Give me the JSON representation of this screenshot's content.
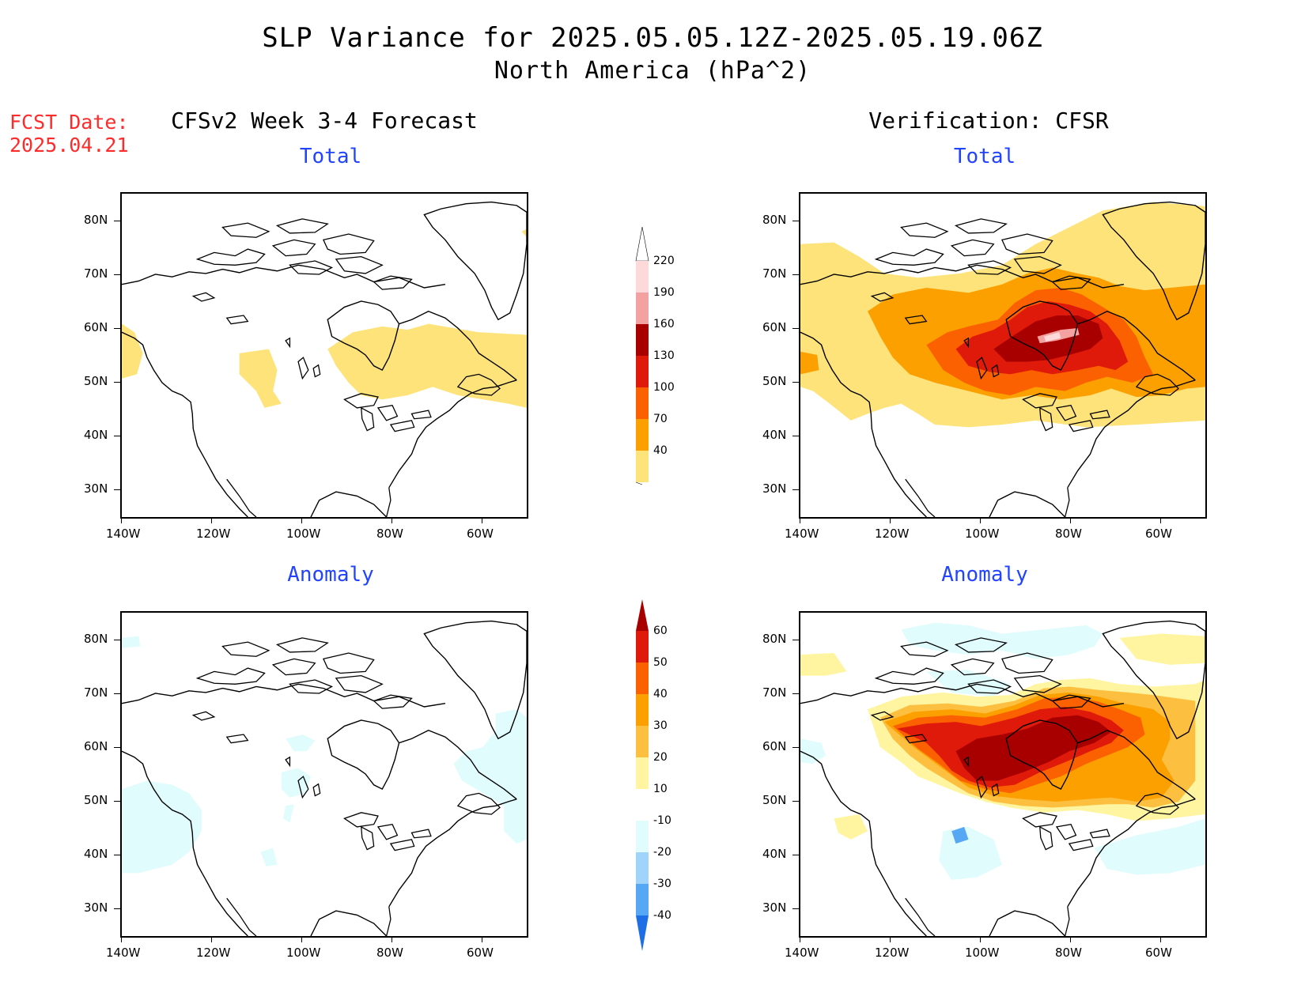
{
  "header": {
    "title": "SLP Variance for 2025.05.05.12Z-2025.05.19.06Z",
    "subtitle": "North America (hPa^2)",
    "fcst_date_line1": "FCST Date:",
    "fcst_date_line2": "2025.04.21"
  },
  "columns": {
    "left": "CFSv2 Week 3-4 Forecast",
    "right": "Verification: CFSR"
  },
  "panels": {
    "forecast_total": "Total",
    "forecast_anomaly": "Anomaly",
    "verif_total": "Total",
    "verif_anomaly": "Anomaly"
  },
  "axes": {
    "lat_ticks": [
      "80N",
      "70N",
      "60N",
      "50N",
      "40N",
      "30N"
    ],
    "lon_ticks": [
      "140W",
      "120W",
      "100W",
      "80W",
      "60W"
    ]
  },
  "colorbars": {
    "total": {
      "labels": [
        "220",
        "190",
        "160",
        "130",
        "100",
        "70",
        "40"
      ],
      "colors": [
        "#fdd9d9",
        "#f4a1a1",
        "#a80000",
        "#e01a0b",
        "#fc6100",
        "#fca000",
        "#fde37a"
      ]
    },
    "anomaly": {
      "labels": [
        "60",
        "50",
        "40",
        "30",
        "20",
        "10",
        "-10",
        "-20",
        "-30",
        "-40"
      ],
      "colors_top_to_bottom": [
        "#a80000",
        "#e01a0b",
        "#fc6100",
        "#fca000",
        "#fdbf3f",
        "#fff5a0",
        "#ffffff",
        "#e0fcfd",
        "#a0d4fb",
        "#56a8f5",
        "#1e6ee6"
      ]
    }
  }
}
